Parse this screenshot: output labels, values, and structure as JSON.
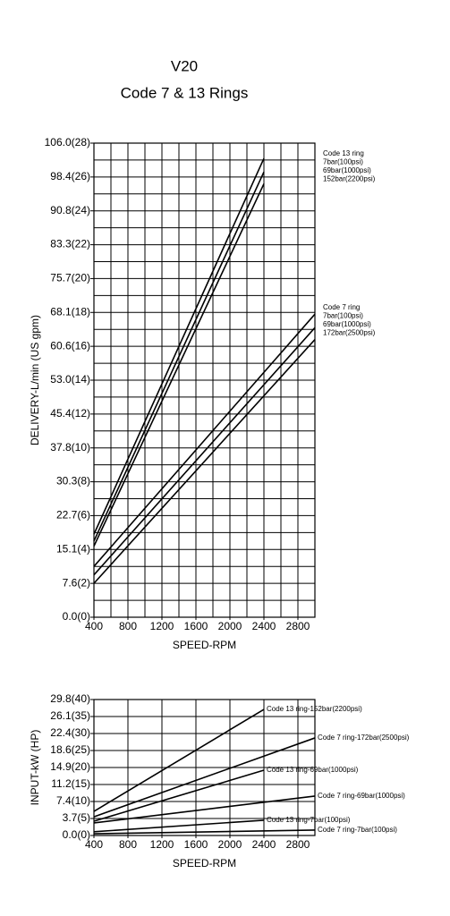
{
  "chart_data": [
    {
      "type": "line",
      "title": "V20",
      "subtitle": "Code 7 & 13 Rings",
      "x_label": "SPEED-RPM",
      "y_label": "DELIVERY-L/min (US gpm)",
      "xlim": [
        400,
        3000
      ],
      "xticks": [
        400,
        800,
        1200,
        1600,
        2000,
        2400,
        2800
      ],
      "ylim": [
        0,
        28
      ],
      "yticks": [
        {
          "value": 0,
          "label": "0.0(0)"
        },
        {
          "value": 2,
          "label": "7.6(2)"
        },
        {
          "value": 4,
          "label": "15.1(4)"
        },
        {
          "value": 6,
          "label": "22.7(6)"
        },
        {
          "value": 8,
          "label": "30.3(8)"
        },
        {
          "value": 10,
          "label": "37.8(10)"
        },
        {
          "value": 12,
          "label": "45.4(12)"
        },
        {
          "value": 14,
          "label": "53.0(14)"
        },
        {
          "value": 16,
          "label": "60.6(16)"
        },
        {
          "value": 18,
          "label": "68.1(18)"
        },
        {
          "value": 20,
          "label": "75.7(20)"
        },
        {
          "value": 22,
          "label": "83.3(22)"
        },
        {
          "value": 24,
          "label": "90.8(24)"
        },
        {
          "value": 26,
          "label": "98.4(26)"
        },
        {
          "value": 28,
          "label": "106.0(28)"
        }
      ],
      "grid_x_step": 200,
      "grid_y_step": 1,
      "series": [
        {
          "color": "#000000",
          "x": [
            400,
            2400
          ],
          "values": [
            4.9,
            27.1
          ]
        },
        {
          "color": "#000000",
          "x": [
            400,
            2400
          ],
          "values": [
            4.5,
            26.3
          ]
        },
        {
          "color": "#000000",
          "x": [
            400,
            2400
          ],
          "values": [
            4.2,
            25.6
          ]
        },
        {
          "color": "#000000",
          "x": [
            400,
            3000
          ],
          "values": [
            3.0,
            17.9
          ]
        },
        {
          "color": "#000000",
          "x": [
            400,
            3000
          ],
          "values": [
            2.5,
            17.1
          ]
        },
        {
          "color": "#000000",
          "x": [
            400,
            3000
          ],
          "values": [
            2.0,
            16.4
          ]
        }
      ],
      "annotations": [
        {
          "lines": [
            "Code 13 ring",
            "7bar(100psi)",
            "69bar(1000psi)",
            "152bar(2200psi)"
          ]
        },
        {
          "lines": [
            "Code 7 ring",
            "7bar(100psi)",
            "69bar(1000psi)",
            "172bar(2500psi)"
          ]
        }
      ]
    },
    {
      "type": "line",
      "x_label": "SPEED-RPM",
      "y_label": "INPUT-kW (HP)",
      "xlim": [
        400,
        3000
      ],
      "xticks": [
        400,
        800,
        1200,
        1600,
        2000,
        2400,
        2800
      ],
      "ylim": [
        0,
        40
      ],
      "yticks": [
        {
          "value": 0,
          "label": "0.0(0)"
        },
        {
          "value": 5,
          "label": "3.7(5)"
        },
        {
          "value": 10,
          "label": "7.4(10)"
        },
        {
          "value": 15,
          "label": "11.2(15)"
        },
        {
          "value": 20,
          "label": "14.9(20)"
        },
        {
          "value": 25,
          "label": "18.6(25)"
        },
        {
          "value": 30,
          "label": "22.4(30)"
        },
        {
          "value": 35,
          "label": "26.1(35)"
        },
        {
          "value": 40,
          "label": "29.8(40)"
        }
      ],
      "grid_x_step": 400,
      "grid_y_step": 5,
      "series": [
        {
          "name": "Code 13 ring-152bar(2200psi)",
          "color": "#000000",
          "x": [
            400,
            2400
          ],
          "values": [
            7.1,
            37.1
          ]
        },
        {
          "name": "Code 7 ring-172bar(2500psi)",
          "color": "#000000",
          "x": [
            400,
            3000
          ],
          "values": [
            5.5,
            28.7
          ]
        },
        {
          "name": "Code 13 ring-69bar(1000psi)",
          "color": "#000000",
          "x": [
            400,
            2400
          ],
          "values": [
            4.2,
            19.2
          ]
        },
        {
          "name": "Code 7 ring-69bar(1000psi)",
          "color": "#000000",
          "x": [
            400,
            3000
          ],
          "values": [
            3.7,
            11.6
          ]
        },
        {
          "name": "Code 13 ring-7bar(100psi)",
          "color": "#000000",
          "x": [
            400,
            2400
          ],
          "values": [
            1.1,
            4.5
          ]
        },
        {
          "name": "Code 7 ring-7bar(100psi)",
          "color": "#000000",
          "x": [
            400,
            3000
          ],
          "values": [
            0.5,
            1.6
          ]
        }
      ]
    }
  ]
}
